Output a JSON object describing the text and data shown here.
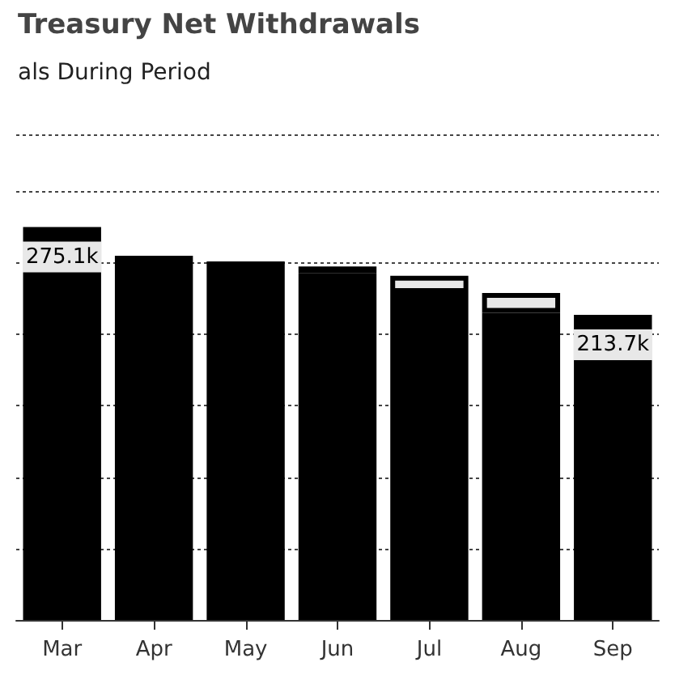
{
  "chart_data": {
    "type": "bar",
    "title": "Treasury Net Withdrawals",
    "subtitle": "als During Period",
    "categories": [
      "Mar",
      "Apr",
      "May",
      "Jun",
      "Jul",
      "Aug",
      "Sep"
    ],
    "stacked": true,
    "series": [
      {
        "color": "#000000",
        "values": [
          275.1,
          255,
          251,
          243,
          229,
          215,
          213.7
        ],
        "value_labels": [
          "275.1k",
          null,
          null,
          null,
          null,
          null,
          "213.7k"
        ]
      },
      {
        "color": "#e8e8e8",
        "values": [
          null,
          null,
          null,
          4.5,
          12,
          14,
          null
        ]
      }
    ],
    "ylim": [
      0,
      340
    ],
    "grid": "y",
    "tick_labels": "x"
  }
}
